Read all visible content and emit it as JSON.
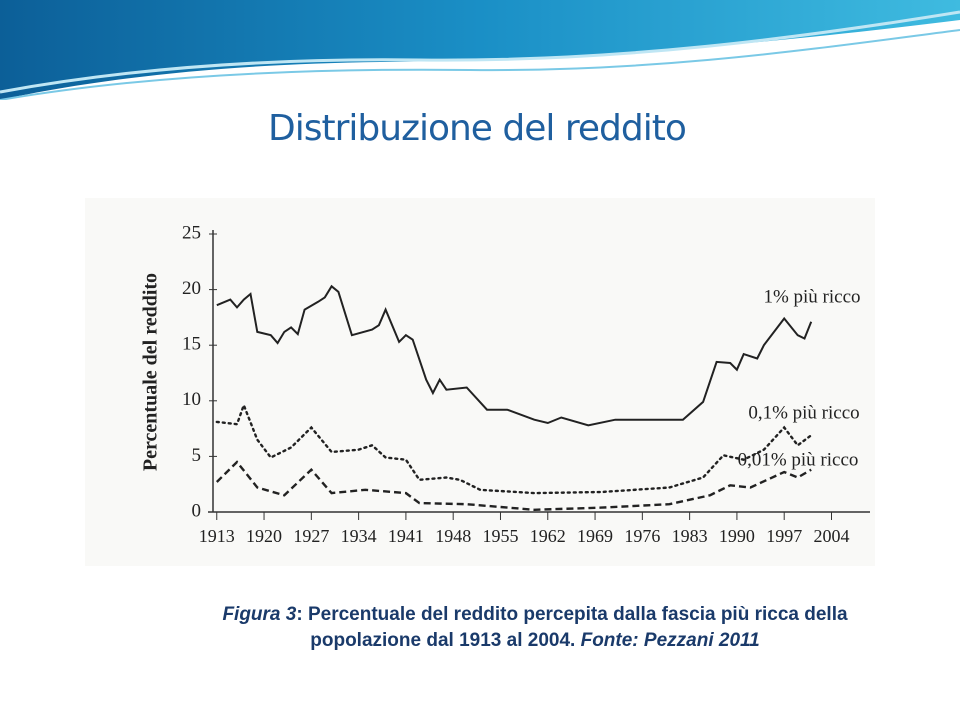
{
  "title": "Distribuzione del reddito",
  "caption": {
    "lead": "Figura 3",
    "text": ": Percentuale del reddito percepita dalla fascia più ricca della popolazione dal 1913 al 2004. ",
    "source": "Fonte: Pezzani 2011"
  },
  "chart_data": {
    "type": "line",
    "ylabel": "Percentuale del reddito",
    "xlim": [
      1912,
      2006
    ],
    "ylim": [
      0,
      25
    ],
    "xticks": [
      1913,
      1920,
      1927,
      1934,
      1941,
      1948,
      1955,
      1962,
      1969,
      1976,
      1983,
      1990,
      1997,
      2004
    ],
    "yticks": [
      0,
      5,
      10,
      15,
      20,
      25
    ],
    "series": [
      {
        "name": "1% più ricco",
        "color": "#222222",
        "style": "solid",
        "x": [
          1913,
          1915,
          1916,
          1917,
          1918,
          1919,
          1921,
          1922,
          1923,
          1924,
          1925,
          1926,
          1928,
          1929,
          1930,
          1931,
          1933,
          1936,
          1937,
          1938,
          1940,
          1941,
          1942,
          1944,
          1945,
          1946,
          1947,
          1950,
          1953,
          1956,
          1960,
          1962,
          1964,
          1968,
          1972,
          1978,
          1982,
          1985,
          1987,
          1989,
          1990,
          1991,
          1993,
          1994,
          1997,
          1999,
          2000,
          2001
        ],
        "values": [
          18.6,
          19.1,
          18.4,
          19.1,
          19.6,
          16.2,
          15.9,
          15.2,
          16.2,
          16.6,
          16.0,
          18.2,
          18.9,
          19.3,
          20.3,
          19.8,
          15.9,
          16.4,
          16.8,
          18.2,
          15.3,
          15.9,
          15.5,
          11.9,
          10.7,
          11.9,
          11.0,
          11.2,
          9.2,
          9.2,
          8.3,
          8.0,
          8.5,
          7.8,
          8.3,
          8.3,
          8.3,
          9.9,
          13.5,
          13.4,
          12.8,
          14.2,
          13.8,
          15.0,
          17.4,
          15.9,
          15.6,
          17.1
        ]
      },
      {
        "name": "0,1% più ricco",
        "color": "#222222",
        "style": "dotted",
        "x": [
          1913,
          1916,
          1917,
          1919,
          1921,
          1924,
          1927,
          1930,
          1934,
          1936,
          1938,
          1941,
          1943,
          1947,
          1949,
          1952,
          1960,
          1970,
          1980,
          1985,
          1988,
          1991,
          1994,
          1997,
          1999,
          2001
        ],
        "values": [
          8.1,
          7.9,
          9.6,
          6.5,
          4.9,
          5.8,
          7.6,
          5.4,
          5.6,
          6.0,
          4.9,
          4.7,
          2.9,
          3.1,
          2.9,
          2.0,
          1.7,
          1.8,
          2.2,
          3.1,
          5.1,
          4.7,
          5.6,
          7.6,
          6.0,
          6.9
        ]
      },
      {
        "name": "0,01% più ricco",
        "color": "#222222",
        "style": "dashed",
        "x": [
          1913,
          1916,
          1919,
          1923,
          1927,
          1930,
          1935,
          1941,
          1943,
          1950,
          1960,
          1970,
          1980,
          1986,
          1989,
          1992,
          1997,
          1999,
          2001
        ],
        "values": [
          2.7,
          4.5,
          2.2,
          1.5,
          3.8,
          1.7,
          2.0,
          1.7,
          0.8,
          0.7,
          0.2,
          0.4,
          0.7,
          1.5,
          2.4,
          2.2,
          3.6,
          3.1,
          3.8
        ]
      }
    ]
  }
}
